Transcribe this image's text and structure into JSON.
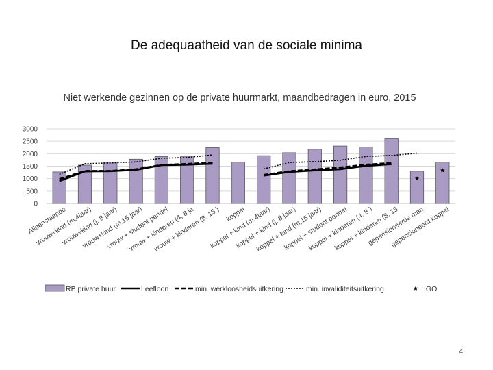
{
  "slide": {
    "title": "De adequaatheid van de sociale minima",
    "page_number": "4"
  },
  "chart_data": {
    "type": "bar",
    "title": "Niet werkende gezinnen op de private huurmarkt, maandbedragen in euro, 2015",
    "xlabel": "",
    "ylabel": "",
    "ylim": [
      0,
      3000
    ],
    "yticks": [
      0,
      500,
      1000,
      1500,
      2000,
      2500,
      3000
    ],
    "grid": true,
    "legend_position": "bottom",
    "categories": [
      "Alleenstaande",
      "vrouw+kind (m,4jaar)",
      "vrouw+kind (j, 8 jaar)",
      "vrouw+kind (m,15 jaar)",
      "vrouw + student pendel",
      "vrouw + kinderen (4, 8 ja",
      "vrouw + kinderen (8, 15 )",
      "koppel",
      "koppel + kind (m,4jaar)",
      "koppel + kind (j, 8 jaar)",
      "koppel + kind (m,15 jaar)",
      "koppel + student pendel",
      "koppel + kinderen (4, 8 )",
      "koppel + kinderen (8, 15",
      "gepensioneerde man",
      "gepensioneerd koppel"
    ],
    "series": [
      {
        "name": "RB private huur",
        "type": "bar",
        "color": "#a99bc4",
        "values": [
          1270,
          1540,
          1660,
          1780,
          1890,
          1880,
          2250,
          1660,
          1920,
          2040,
          2180,
          2310,
          2270,
          2610,
          1300,
          1660
        ]
      },
      {
        "name": "Leefloon",
        "type": "line",
        "style": "solid",
        "color": "#000000",
        "values": [
          900,
          1290,
          1300,
          1350,
          1540,
          1560,
          1600,
          null,
          1120,
          1270,
          1330,
          1380,
          1510,
          1580,
          null,
          null
        ]
      },
      {
        "name": "min. werkloosheidsuitkering",
        "type": "line",
        "style": "dashed",
        "color": "#000000",
        "values": [
          980,
          1310,
          1310,
          1380,
          1550,
          1590,
          1640,
          null,
          1150,
          1300,
          1370,
          1450,
          1560,
          1630,
          null,
          null
        ]
      },
      {
        "name": "min. invaliditeitsuitkering",
        "type": "line",
        "style": "dotted",
        "color": "#000000",
        "values": [
          1170,
          1600,
          1630,
          1670,
          1820,
          1850,
          1950,
          null,
          1390,
          1650,
          1680,
          1740,
          1890,
          1930,
          2020,
          null
        ]
      },
      {
        "name": "IGO",
        "type": "marker",
        "marker": "star",
        "color": "#000000",
        "values": [
          null,
          null,
          null,
          null,
          null,
          null,
          null,
          null,
          null,
          null,
          null,
          null,
          null,
          null,
          1000,
          1330
        ]
      }
    ]
  }
}
